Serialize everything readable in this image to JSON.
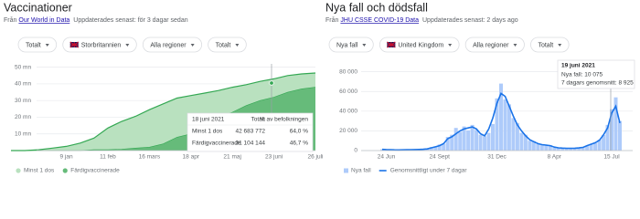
{
  "chart_data": [
    {
      "type": "area",
      "title": "Vaccinationer",
      "source_prefix": "Från",
      "source": "Our World in Data",
      "updated": "Uppdaterades senast: för 3 dagar sedan",
      "dropdowns": [
        "Totalt",
        "Storbritannien",
        "Alla regioner",
        "Totalt"
      ],
      "categories": [
        null,
        null,
        null,
        null,
        "9 jan",
        null,
        null,
        "11 feb",
        null,
        null,
        "16 mars",
        null,
        null,
        "18 apr",
        null,
        null,
        "21 maj",
        null,
        null,
        "23 juni",
        null,
        null,
        "26 juli"
      ],
      "series": [
        {
          "name": "Minst 1 dos",
          "color": "#34a853",
          "fill": "#b9e1bf",
          "values": [
            0,
            0,
            0.5,
            1.5,
            2.5,
            4.5,
            7.5,
            13.5,
            17.5,
            20.5,
            24.5,
            28,
            31.5,
            33,
            34.5,
            36,
            38,
            39.5,
            41.5,
            43,
            45,
            46,
            46.5
          ]
        },
        {
          "name": "Färdigvaccinerade",
          "color": "#34a853",
          "fill": "#66bb7a",
          "values": [
            0,
            0,
            0,
            0,
            0,
            0,
            0.5,
            0.5,
            0.8,
            1.5,
            2,
            4,
            8,
            10,
            15,
            20,
            23,
            27,
            30,
            32,
            35,
            37,
            38
          ]
        }
      ],
      "ylim": [
        0,
        52
      ],
      "yticks": [
        {
          "value": 10,
          "label": "10 mn"
        },
        {
          "value": 20,
          "label": "20 mn"
        },
        {
          "value": 30,
          "label": "30 mn"
        },
        {
          "value": 40,
          "label": "40 mn"
        },
        {
          "value": 50,
          "label": "50 mn"
        }
      ],
      "grid": true,
      "tooltip": {
        "date": "18 juni 2021",
        "headers": [
          "Totalt",
          "% av befolkningen"
        ],
        "rows": [
          [
            "Minst 1 dos",
            "42 683 772",
            "64,0 %"
          ],
          [
            "Färdigvaccinerade",
            "31 104 144",
            "46,7 %"
          ]
        ]
      }
    },
    {
      "type": "combo",
      "title": "Nya fall och dödsfall",
      "source_prefix": "Från",
      "source": "JHU CSSE COVID-19 Data",
      "updated": "Uppdaterades senast: 2 days ago",
      "dropdowns": [
        "Nya fall",
        "United Kingdom",
        "Alla regioner",
        "Totalt"
      ],
      "categories": [
        null,
        "24 Jun",
        null,
        null,
        null,
        null,
        null,
        null,
        null,
        null,
        null,
        null,
        null,
        null,
        "24 Sept",
        null,
        null,
        null,
        null,
        null,
        null,
        null,
        null,
        null,
        null,
        null,
        null,
        null,
        "31 Dec",
        null,
        null,
        null,
        null,
        null,
        null,
        null,
        null,
        null,
        null,
        null,
        null,
        null,
        "8 Apr",
        null,
        null,
        null,
        null,
        null,
        null,
        null,
        null,
        null,
        null,
        null,
        null,
        null,
        "15 Jul",
        null,
        null
      ],
      "series": [
        {
          "name": "Nya fall",
          "type": "bar",
          "color": "#aecbfa",
          "values": [
            1300,
            900,
            1100,
            600,
            800,
            650,
            900,
            800,
            1200,
            1000,
            1500,
            2000,
            3500,
            4300,
            6200,
            6900,
            13800,
            16000,
            23000,
            19000,
            24500,
            20500,
            26000,
            21000,
            16000,
            14500,
            18000,
            27000,
            53000,
            68000,
            52000,
            47000,
            33000,
            28000,
            18000,
            16000,
            10000,
            9500,
            6500,
            6000,
            4800,
            5500,
            2800,
            3000,
            2100,
            2600,
            2000,
            2700,
            2500,
            3500,
            4500,
            6500,
            7600,
            11000,
            15800,
            26000,
            42000,
            54000,
            30000
          ]
        },
        {
          "name": "Genomsnittligt under 7 dagar",
          "type": "line",
          "color": "#1a73e8",
          "values": [
            1200,
            1000,
            900,
            700,
            650,
            700,
            800,
            900,
            1000,
            1100,
            1300,
            1700,
            2800,
            3800,
            5000,
            7000,
            12000,
            14000,
            17000,
            20000,
            22000,
            23000,
            24000,
            22000,
            17000,
            15000,
            22000,
            33000,
            48000,
            58000,
            55000,
            45000,
            35000,
            26000,
            20000,
            15000,
            11000,
            9000,
            7000,
            6000,
            5500,
            5000,
            3500,
            2800,
            2500,
            2300,
            2300,
            2400,
            2700,
            3200,
            5000,
            6500,
            8000,
            10500,
            16000,
            23000,
            38000,
            45000,
            28000
          ]
        }
      ],
      "ylim": [
        0,
        88000
      ],
      "yticks": [
        0,
        {
          "value": 20000,
          "label": "20 000"
        },
        {
          "value": 40000,
          "label": "40 000"
        },
        {
          "value": 60000,
          "label": "60 000"
        },
        {
          "value": 80000,
          "label": "80 000"
        }
      ],
      "grid": true,
      "tooltip": {
        "date": "19 juni 2021",
        "lines": [
          "Nya fall: 10 075",
          "7 dagars genomsnitt: 8 925"
        ]
      }
    }
  ]
}
